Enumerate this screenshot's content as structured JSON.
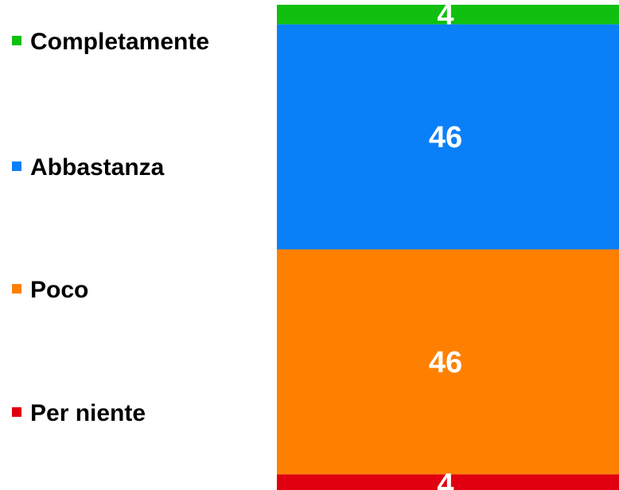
{
  "chart_data": {
    "type": "bar",
    "stacked": true,
    "categories": [
      ""
    ],
    "series": [
      {
        "name": "Completamente",
        "values": [
          4
        ],
        "color": "#10C010"
      },
      {
        "name": "Abbastanza",
        "values": [
          46
        ],
        "color": "#0A80F8"
      },
      {
        "name": "Poco",
        "values": [
          46
        ],
        "color": "#FF8000"
      },
      {
        "name": "Per niente",
        "values": [
          4
        ],
        "color": "#E00010"
      }
    ],
    "data_labels": [
      "4",
      "46",
      "46",
      "4"
    ],
    "legend_position": "left",
    "ylim": [
      0,
      100
    ],
    "grid": false
  }
}
